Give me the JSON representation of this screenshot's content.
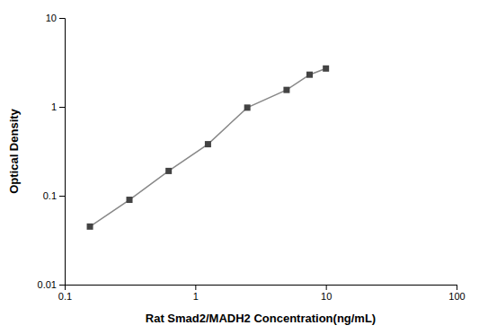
{
  "chart_data": {
    "type": "line",
    "x": [
      0.156,
      0.313,
      0.625,
      1.25,
      2.5,
      5.0,
      7.5,
      10.0
    ],
    "values": [
      0.045,
      0.09,
      0.19,
      0.38,
      0.98,
      1.55,
      2.3,
      2.7
    ],
    "color": "#888888",
    "marker": "square",
    "xlabel": "Rat Smad2/MADH2 Concentration(ng/mL)",
    "ylabel": "Optical Density",
    "xlim": [
      0.1,
      100
    ],
    "ylim": [
      0.01,
      10
    ],
    "xticks": [
      0.1,
      1,
      10,
      100
    ],
    "yticks": [
      0.01,
      0.1,
      1,
      10
    ],
    "log": true,
    "grid": false
  }
}
